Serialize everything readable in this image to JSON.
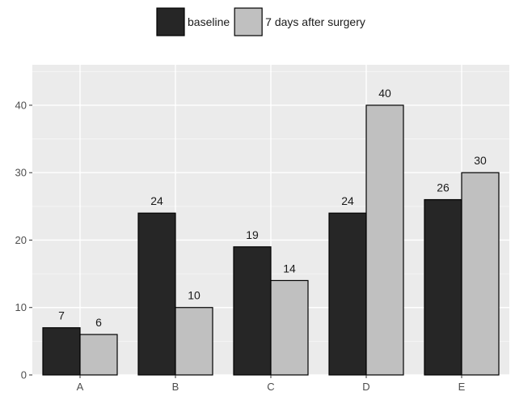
{
  "chart_data": {
    "type": "bar",
    "title": "",
    "xlabel": "",
    "ylabel": "",
    "categories": [
      "A",
      "B",
      "C",
      "D",
      "E"
    ],
    "series": [
      {
        "name": "baseline",
        "values": [
          7,
          24,
          19,
          24,
          26
        ],
        "color": "#262626"
      },
      {
        "name": "7 days after surgery",
        "values": [
          6,
          10,
          14,
          40,
          30
        ],
        "color": "#c0c0c0"
      }
    ],
    "ylim": [
      0,
      46
    ],
    "yticks": [
      "0",
      "10",
      "20",
      "30",
      "40"
    ],
    "grid": true,
    "legend_position": "top",
    "panel_background": "#ebebeb"
  }
}
